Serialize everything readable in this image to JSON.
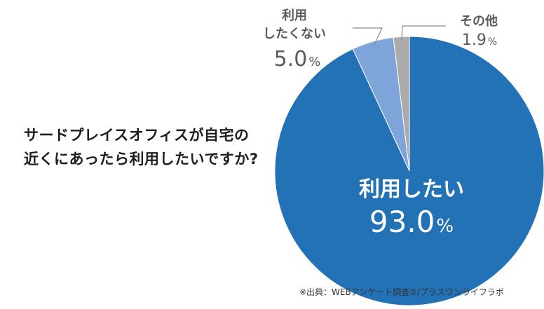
{
  "question": {
    "line1": "サードプレイスオフィスが自宅の",
    "line2": "近くにあったら利用したいですか?"
  },
  "source": "※出典：WEBアンケート調査②/プラスワンライフラボ",
  "chart_data": {
    "type": "pie",
    "title": "サードプレイスオフィスが自宅の近くにあったら利用したいですか?",
    "unit": "%",
    "slices": [
      {
        "label": "利用したい",
        "value": 93.0,
        "display": "93.0",
        "color": "#2472b6"
      },
      {
        "label": "利用したくない",
        "label_lines": [
          "利用",
          "したくない"
        ],
        "value": 5.0,
        "display": "5.0",
        "color": "#7ea4d9"
      },
      {
        "label": "その他",
        "label_lines": [
          "その他"
        ],
        "value": 1.9,
        "display": "1.9",
        "color": "#ababab"
      }
    ]
  }
}
